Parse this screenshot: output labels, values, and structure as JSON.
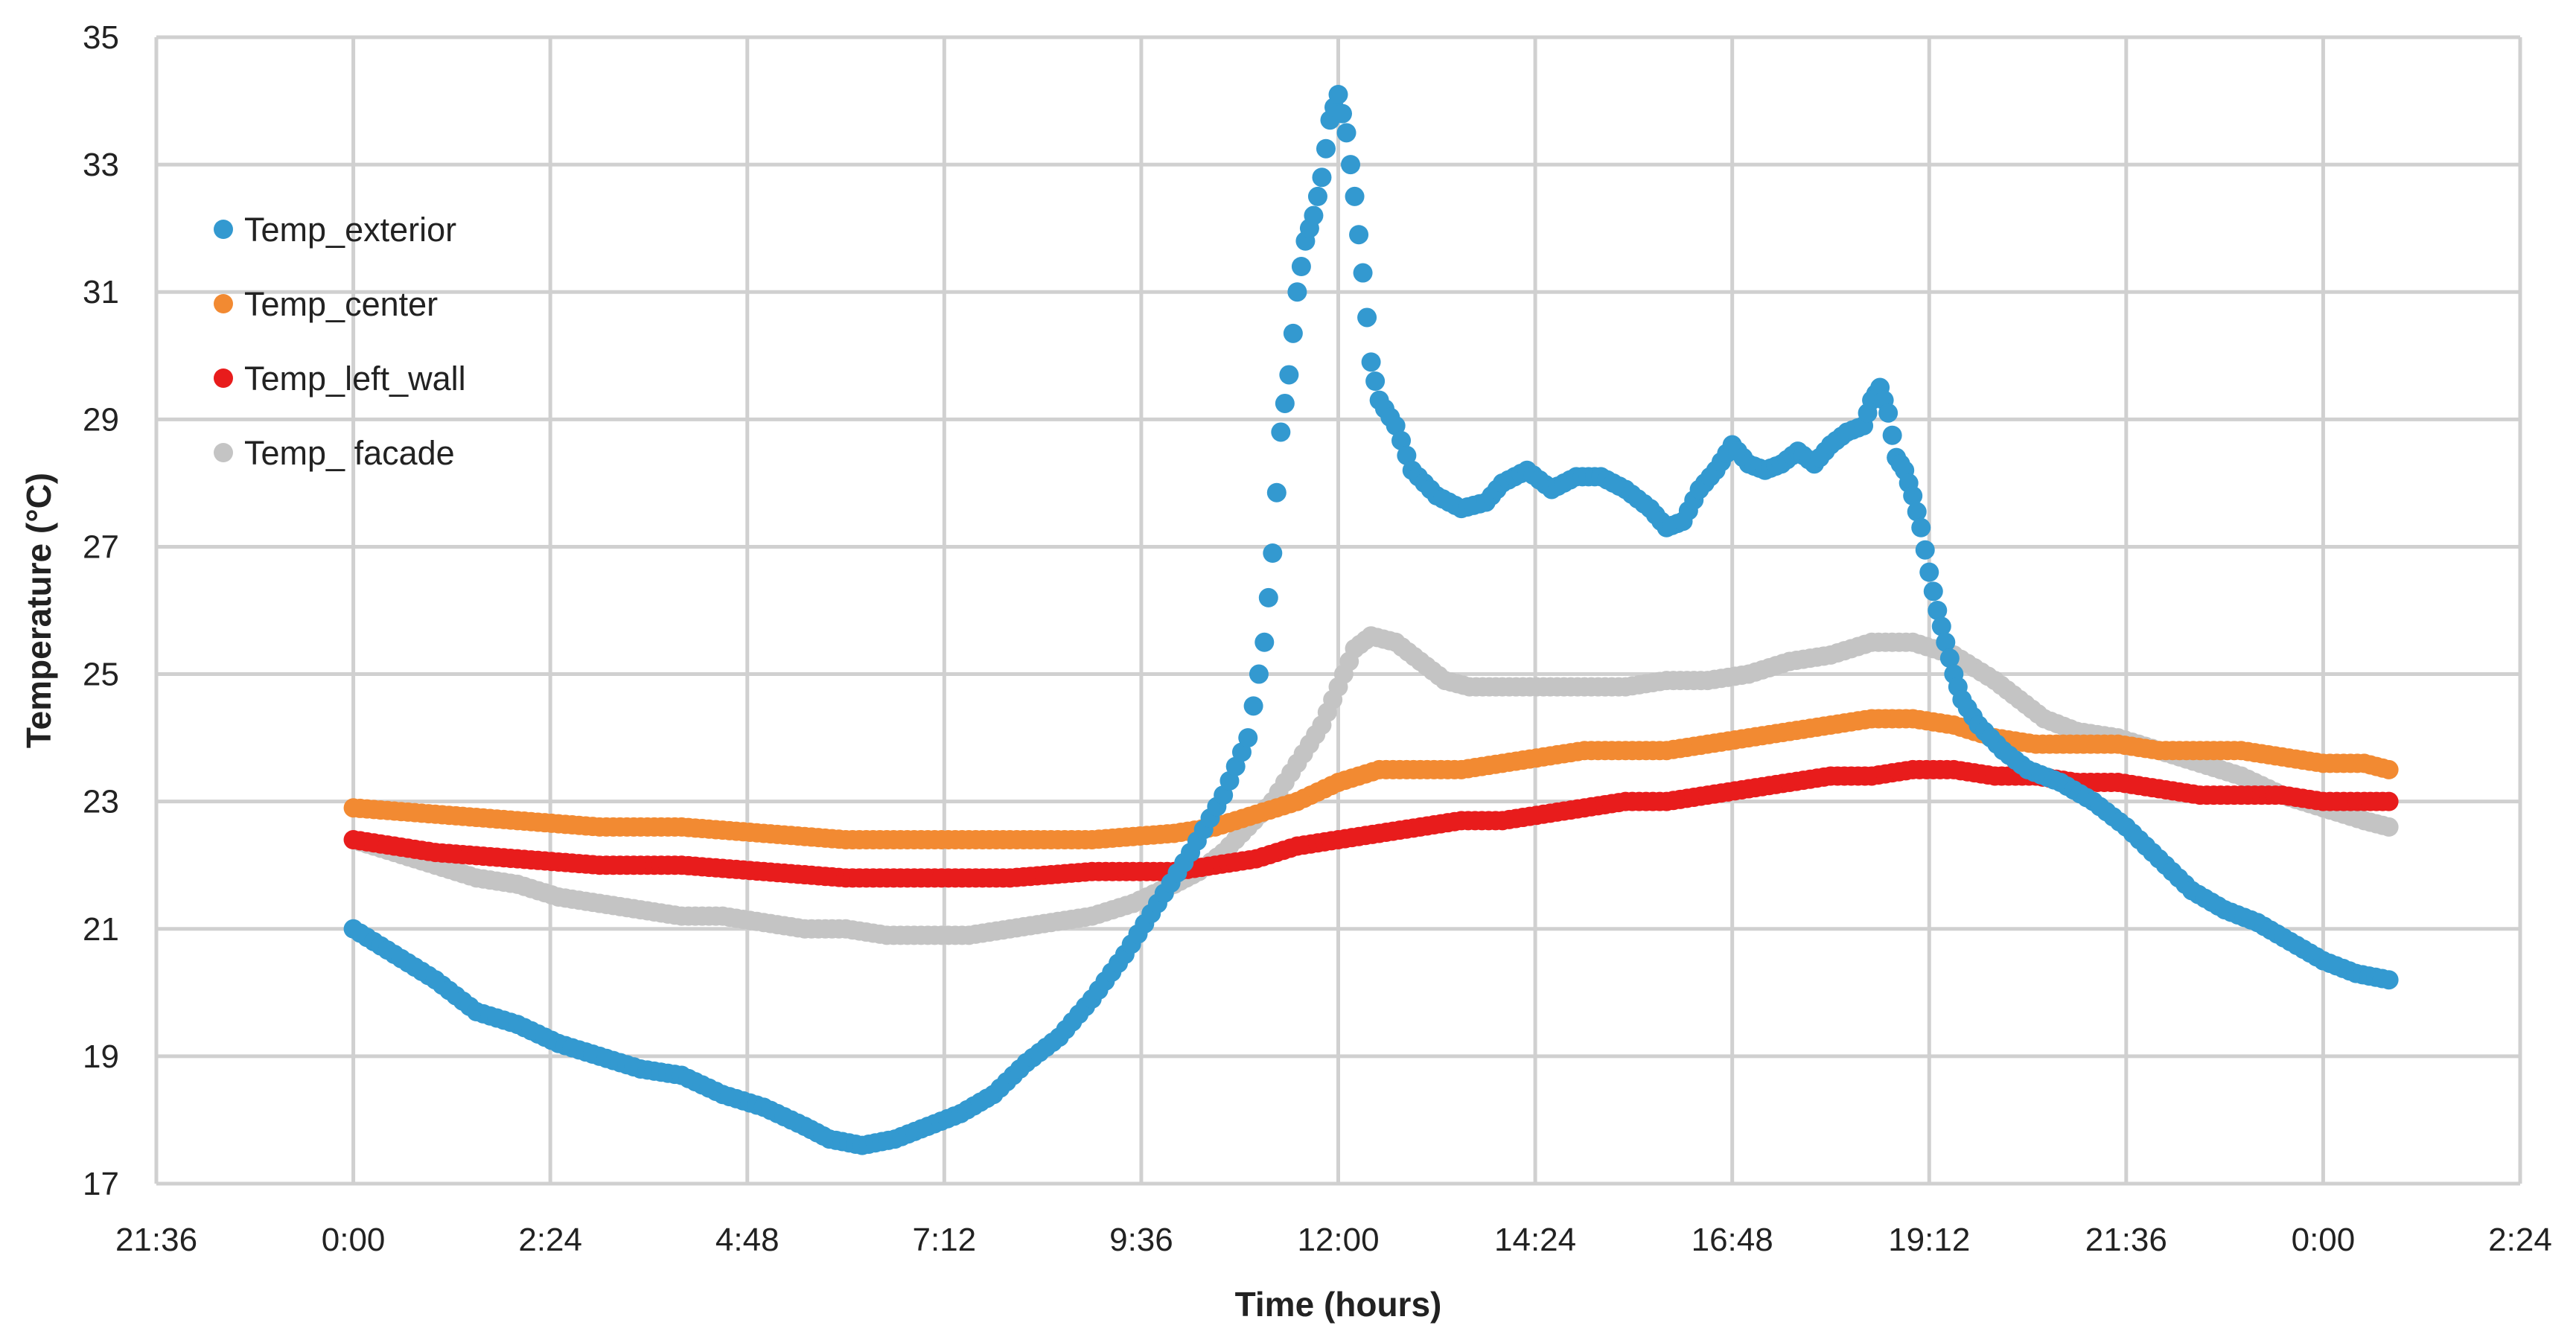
{
  "chart_data": {
    "type": "scatter",
    "xlabel": "Time (hours)",
    "ylabel": "Temperature (°C)",
    "xlim": [
      -2.4,
      26.4
    ],
    "ylim": [
      17,
      35
    ],
    "x_ticks": [
      -2.4,
      0,
      2.4,
      4.8,
      7.2,
      9.6,
      12,
      14.4,
      16.8,
      19.2,
      21.6,
      24,
      26.4
    ],
    "x_tick_labels": [
      "21:36",
      "0:00",
      "2:24",
      "4:48",
      "7:12",
      "9:36",
      "12:00",
      "14:24",
      "16:48",
      "19:12",
      "21:36",
      "0:00",
      "2:24"
    ],
    "y_ticks": [
      17,
      19,
      21,
      23,
      25,
      27,
      29,
      31,
      33,
      35
    ],
    "y_tick_labels": [
      "17",
      "19",
      "21",
      "23",
      "25",
      "27",
      "29",
      "31",
      "33",
      "35"
    ],
    "grid": true,
    "legend_position": "top-left",
    "series": [
      {
        "name": "Temp_exterior",
        "color": "#3399d0",
        "points": [
          [
            0,
            21.0
          ],
          [
            0.5,
            20.6
          ],
          [
            1,
            20.2
          ],
          [
            1.5,
            19.7
          ],
          [
            2,
            19.5
          ],
          [
            2.5,
            19.2
          ],
          [
            3,
            19.0
          ],
          [
            3.5,
            18.8
          ],
          [
            4,
            18.7
          ],
          [
            4.5,
            18.4
          ],
          [
            5,
            18.2
          ],
          [
            5.5,
            17.9
          ],
          [
            5.8,
            17.7
          ],
          [
            6.2,
            17.6
          ],
          [
            6.6,
            17.7
          ],
          [
            7,
            17.9
          ],
          [
            7.4,
            18.1
          ],
          [
            7.8,
            18.4
          ],
          [
            8.2,
            18.9
          ],
          [
            8.6,
            19.3
          ],
          [
            9,
            19.9
          ],
          [
            9.4,
            20.6
          ],
          [
            9.8,
            21.4
          ],
          [
            10.2,
            22.2
          ],
          [
            10.6,
            23.1
          ],
          [
            10.9,
            24.0
          ],
          [
            11.1,
            25.5
          ],
          [
            11.2,
            26.9
          ],
          [
            11.3,
            28.8
          ],
          [
            11.4,
            29.7
          ],
          [
            11.5,
            31.0
          ],
          [
            11.6,
            31.8
          ],
          [
            11.7,
            32.2
          ],
          [
            11.8,
            32.8
          ],
          [
            11.9,
            33.7
          ],
          [
            12.0,
            34.1
          ],
          [
            12.1,
            33.5
          ],
          [
            12.2,
            32.5
          ],
          [
            12.3,
            31.3
          ],
          [
            12.4,
            29.9
          ],
          [
            12.5,
            29.3
          ],
          [
            12.7,
            28.9
          ],
          [
            12.9,
            28.2
          ],
          [
            13.2,
            27.8
          ],
          [
            13.5,
            27.6
          ],
          [
            13.8,
            27.7
          ],
          [
            14.0,
            28.0
          ],
          [
            14.3,
            28.2
          ],
          [
            14.6,
            27.9
          ],
          [
            14.9,
            28.1
          ],
          [
            15.2,
            28.1
          ],
          [
            15.5,
            27.9
          ],
          [
            15.8,
            27.6
          ],
          [
            16.0,
            27.3
          ],
          [
            16.2,
            27.4
          ],
          [
            16.4,
            27.9
          ],
          [
            16.6,
            28.2
          ],
          [
            16.8,
            28.6
          ],
          [
            17.0,
            28.3
          ],
          [
            17.2,
            28.2
          ],
          [
            17.4,
            28.3
          ],
          [
            17.6,
            28.5
          ],
          [
            17.8,
            28.3
          ],
          [
            18.0,
            28.6
          ],
          [
            18.2,
            28.8
          ],
          [
            18.4,
            28.9
          ],
          [
            18.5,
            29.3
          ],
          [
            18.6,
            29.5
          ],
          [
            18.7,
            29.1
          ],
          [
            18.8,
            28.4
          ],
          [
            18.9,
            28.2
          ],
          [
            19.0,
            27.8
          ],
          [
            19.1,
            27.3
          ],
          [
            19.2,
            26.6
          ],
          [
            19.3,
            26.0
          ],
          [
            19.4,
            25.5
          ],
          [
            19.5,
            25.0
          ],
          [
            19.6,
            24.6
          ],
          [
            19.8,
            24.2
          ],
          [
            20.1,
            23.8
          ],
          [
            20.4,
            23.5
          ],
          [
            20.8,
            23.3
          ],
          [
            21.2,
            23.0
          ],
          [
            21.6,
            22.6
          ],
          [
            22.0,
            22.1
          ],
          [
            22.4,
            21.6
          ],
          [
            22.8,
            21.3
          ],
          [
            23.2,
            21.1
          ],
          [
            23.6,
            20.8
          ],
          [
            24.0,
            20.5
          ],
          [
            24.4,
            20.3
          ],
          [
            24.8,
            20.2
          ]
        ]
      },
      {
        "name": "Temp_center",
        "color": "#f28a32",
        "points": [
          [
            0,
            22.9
          ],
          [
            1,
            22.8
          ],
          [
            2,
            22.7
          ],
          [
            3,
            22.6
          ],
          [
            4,
            22.6
          ],
          [
            5,
            22.5
          ],
          [
            6,
            22.4
          ],
          [
            7,
            22.4
          ],
          [
            8,
            22.4
          ],
          [
            9,
            22.4
          ],
          [
            10,
            22.5
          ],
          [
            10.5,
            22.6
          ],
          [
            11,
            22.8
          ],
          [
            11.5,
            23.0
          ],
          [
            12,
            23.3
          ],
          [
            12.5,
            23.5
          ],
          [
            13,
            23.5
          ],
          [
            13.5,
            23.5
          ],
          [
            14,
            23.6
          ],
          [
            14.5,
            23.7
          ],
          [
            15,
            23.8
          ],
          [
            15.5,
            23.8
          ],
          [
            16,
            23.8
          ],
          [
            16.5,
            23.9
          ],
          [
            17,
            24.0
          ],
          [
            17.5,
            24.1
          ],
          [
            18,
            24.2
          ],
          [
            18.5,
            24.3
          ],
          [
            19,
            24.3
          ],
          [
            19.5,
            24.2
          ],
          [
            20,
            24.0
          ],
          [
            20.5,
            23.9
          ],
          [
            21,
            23.9
          ],
          [
            21.5,
            23.9
          ],
          [
            22,
            23.8
          ],
          [
            22.5,
            23.8
          ],
          [
            23,
            23.8
          ],
          [
            23.5,
            23.7
          ],
          [
            24,
            23.6
          ],
          [
            24.5,
            23.6
          ],
          [
            24.8,
            23.5
          ]
        ]
      },
      {
        "name": "Temp_left_wall",
        "color": "#e81c1c",
        "points": [
          [
            0,
            22.4
          ],
          [
            1,
            22.2
          ],
          [
            2,
            22.1
          ],
          [
            3,
            22.0
          ],
          [
            4,
            22.0
          ],
          [
            5,
            21.9
          ],
          [
            6,
            21.8
          ],
          [
            7,
            21.8
          ],
          [
            8,
            21.8
          ],
          [
            9,
            21.9
          ],
          [
            10,
            21.9
          ],
          [
            10.5,
            22.0
          ],
          [
            11,
            22.1
          ],
          [
            11.5,
            22.3
          ],
          [
            12,
            22.4
          ],
          [
            12.5,
            22.5
          ],
          [
            13,
            22.6
          ],
          [
            13.5,
            22.7
          ],
          [
            14,
            22.7
          ],
          [
            14.5,
            22.8
          ],
          [
            15,
            22.9
          ],
          [
            15.5,
            23.0
          ],
          [
            16,
            23.0
          ],
          [
            16.5,
            23.1
          ],
          [
            17,
            23.2
          ],
          [
            17.5,
            23.3
          ],
          [
            18,
            23.4
          ],
          [
            18.5,
            23.4
          ],
          [
            19,
            23.5
          ],
          [
            19.5,
            23.5
          ],
          [
            20,
            23.4
          ],
          [
            20.5,
            23.4
          ],
          [
            21,
            23.3
          ],
          [
            21.5,
            23.3
          ],
          [
            22,
            23.2
          ],
          [
            22.5,
            23.1
          ],
          [
            23,
            23.1
          ],
          [
            23.5,
            23.1
          ],
          [
            24,
            23.0
          ],
          [
            24.5,
            23.0
          ],
          [
            24.8,
            23.0
          ]
        ]
      },
      {
        "name": "Temp_ facade",
        "color": "#c4c4c4",
        "points": [
          [
            0,
            22.4
          ],
          [
            0.5,
            22.2
          ],
          [
            1,
            22.0
          ],
          [
            1.5,
            21.8
          ],
          [
            2,
            21.7
          ],
          [
            2.5,
            21.5
          ],
          [
            3,
            21.4
          ],
          [
            3.5,
            21.3
          ],
          [
            4,
            21.2
          ],
          [
            4.5,
            21.2
          ],
          [
            5,
            21.1
          ],
          [
            5.5,
            21.0
          ],
          [
            6,
            21.0
          ],
          [
            6.5,
            20.9
          ],
          [
            7,
            20.9
          ],
          [
            7.5,
            20.9
          ],
          [
            8,
            21.0
          ],
          [
            8.5,
            21.1
          ],
          [
            9,
            21.2
          ],
          [
            9.5,
            21.4
          ],
          [
            10,
            21.7
          ],
          [
            10.3,
            21.9
          ],
          [
            10.6,
            22.2
          ],
          [
            10.9,
            22.6
          ],
          [
            11.2,
            23.0
          ],
          [
            11.5,
            23.6
          ],
          [
            11.8,
            24.2
          ],
          [
            12.0,
            24.8
          ],
          [
            12.2,
            25.4
          ],
          [
            12.4,
            25.6
          ],
          [
            12.7,
            25.5
          ],
          [
            13.0,
            25.2
          ],
          [
            13.3,
            24.9
          ],
          [
            13.6,
            24.8
          ],
          [
            14,
            24.8
          ],
          [
            14.5,
            24.8
          ],
          [
            15,
            24.8
          ],
          [
            15.5,
            24.8
          ],
          [
            16,
            24.9
          ],
          [
            16.5,
            24.9
          ],
          [
            17,
            25.0
          ],
          [
            17.5,
            25.2
          ],
          [
            18,
            25.3
          ],
          [
            18.5,
            25.5
          ],
          [
            19,
            25.5
          ],
          [
            19.5,
            25.3
          ],
          [
            20,
            24.9
          ],
          [
            20.3,
            24.6
          ],
          [
            20.6,
            24.3
          ],
          [
            21,
            24.1
          ],
          [
            21.5,
            24.0
          ],
          [
            22,
            23.8
          ],
          [
            22.5,
            23.6
          ],
          [
            23,
            23.4
          ],
          [
            23.5,
            23.1
          ],
          [
            24,
            22.9
          ],
          [
            24.5,
            22.7
          ],
          [
            24.8,
            22.6
          ]
        ]
      }
    ]
  }
}
